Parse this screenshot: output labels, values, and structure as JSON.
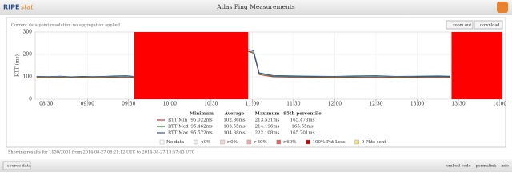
{
  "header": {
    "logo": "RIPE",
    "logo_sub": "stat",
    "title": "Atlas Ping Measurements"
  },
  "toolbar": {
    "resolution_label": "Current data point resolution:",
    "resolution": "no aggregation applied",
    "buttons": [
      "zoom out",
      "download"
    ]
  },
  "chart_data": {
    "type": "line",
    "ylabel": "RTT (ms)",
    "x": [
      503,
      512,
      520,
      528,
      536,
      544,
      552,
      560,
      568,
      574,
      615,
      657,
      661,
      665,
      675,
      690,
      705,
      720,
      735,
      750,
      765,
      780,
      795,
      804
    ],
    "series": [
      {
        "name": "RTT Min",
        "color": "#c0392b",
        "values": [
          96,
          95,
          96,
          95,
          96,
          95,
          96,
          97,
          98,
          96,
          null,
          213,
          205,
          110,
          100,
          98,
          97,
          96,
          97,
          98,
          96,
          97,
          98,
          97
        ]
      },
      {
        "name": "RTT Med",
        "color": "#2e7d32",
        "values": [
          99,
          98,
          99,
          97,
          99,
          98,
          99,
          100,
          101,
          99,
          null,
          214,
          210,
          115,
          103,
          101,
          100,
          99,
          100,
          101,
          99,
          100,
          101,
          100
        ]
      },
      {
        "name": "RTT Max",
        "color": "#3355aa",
        "values": [
          102,
          101,
          103,
          100,
          102,
          101,
          102,
          104,
          105,
          102,
          null,
          222,
          216,
          118,
          106,
          104,
          103,
          102,
          104,
          105,
          102,
          103,
          104,
          103
        ]
      }
    ],
    "loss_periods": [
      {
        "start": 574,
        "end": 657
      },
      {
        "start": 805,
        "end": 842
      }
    ],
    "loss_color": "#ff0000",
    "xlim": [
      502,
      842
    ],
    "xticks": [
      {
        "value": 510,
        "label": "08:30"
      },
      {
        "value": 540,
        "label": "09:00"
      },
      {
        "value": 570,
        "label": "09:30"
      },
      {
        "value": 600,
        "label": "10:00"
      },
      {
        "value": 630,
        "label": "10:30"
      },
      {
        "value": 660,
        "label": "11:00"
      },
      {
        "value": 690,
        "label": "11:30"
      },
      {
        "value": 720,
        "label": "12:00"
      },
      {
        "value": 750,
        "label": "12:30"
      },
      {
        "value": 780,
        "label": "13:00"
      },
      {
        "value": 810,
        "label": "13:30"
      },
      {
        "value": 840,
        "label": "14:00"
      }
    ],
    "ylim": [
      0,
      300
    ],
    "yticks": [
      0,
      100,
      200,
      300
    ],
    "grid": true
  },
  "stats_table": {
    "columns": [
      "Minimum",
      "Average",
      "Maximum",
      "95th percentile"
    ],
    "rows": [
      {
        "name": "RTT Min",
        "cells": [
          "95.022ms",
          "102.86ms",
          "213.531ms",
          "165.473ms"
        ]
      },
      {
        "name": "RTT Med",
        "cells": [
          "95.462ms",
          "103.55ms",
          "214.196ms",
          "165.55ms"
        ]
      },
      {
        "name": "RTT Max",
        "cells": [
          "95.572ms",
          "104.88ms",
          "222.108ms",
          "165.701ms"
        ]
      }
    ]
  },
  "loss_legend": [
    {
      "label": "No data",
      "color": "#ffffff"
    },
    {
      "label": "<0%",
      "color": "#eeeeee"
    },
    {
      "label": ">0%",
      "color": "#f7d6d6"
    },
    {
      "label": ">30%",
      "color": "#f0a8a8"
    },
    {
      "label": ">60%",
      "color": "#e06060"
    },
    {
      "label": "100% Pkt Loss",
      "color": "#cc0000"
    },
    {
      "label": "0 Pkts sent",
      "color": "#f3e27a"
    }
  ],
  "footer": {
    "text": "Showing results for 1030/2001 from 2014-08-27 08:21:12 UTC to 2014-08-27 13:57:43 UTC"
  },
  "bottom_bar": {
    "source": "source data",
    "links": [
      "embed code",
      "permalink",
      "info"
    ]
  }
}
